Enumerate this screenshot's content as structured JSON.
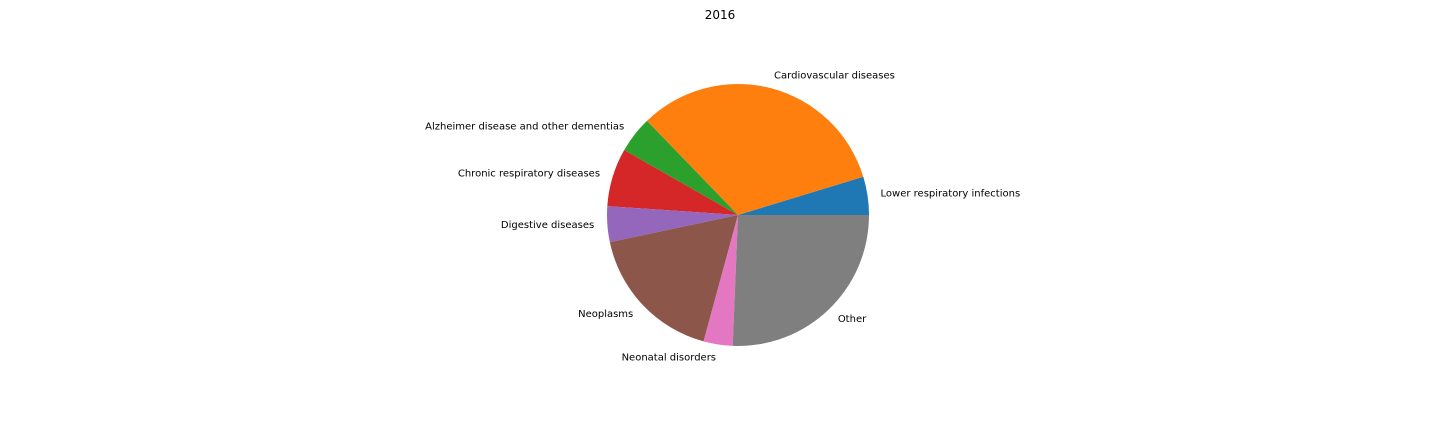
{
  "chart_data": {
    "type": "pie",
    "title": "2016",
    "start_angle_deg": 0,
    "direction": "counterclockwise",
    "slices": [
      {
        "label": "Lower respiratory infections",
        "value": 4.6,
        "color": "#1f77b4"
      },
      {
        "label": "Cardiovascular diseases",
        "value": 31.7,
        "color": "#ff7f0e"
      },
      {
        "label": "Alzheimer disease and other dementias",
        "value": 4.4,
        "color": "#2ca02c"
      },
      {
        "label": "Chronic respiratory diseases",
        "value": 7.0,
        "color": "#d62728"
      },
      {
        "label": "Digestive diseases",
        "value": 4.3,
        "color": "#9467bd"
      },
      {
        "label": "Neoplasms",
        "value": 17.0,
        "color": "#8c564b"
      },
      {
        "label": "Neonatal disorders",
        "value": 3.5,
        "color": "#e377c2"
      },
      {
        "label": "Other",
        "value": 25.0,
        "color": "#7f7f7f"
      }
    ]
  }
}
